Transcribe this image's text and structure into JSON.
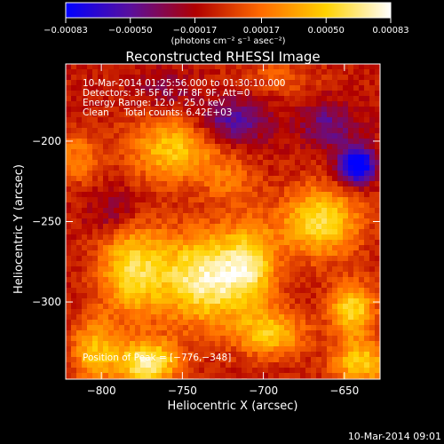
{
  "chart_data": {
    "type": "heatmap",
    "title": "Reconstructed RHESSI Image",
    "xlabel": "Heliocentric X (arcsec)",
    "ylabel": "Heliocentric Y (arcsec)",
    "xlim": [
      -822,
      -628
    ],
    "ylim": [
      -348,
      -152
    ],
    "x_ticks": [
      {
        "value": -800,
        "label": "−800"
      },
      {
        "value": -750,
        "label": "−750"
      },
      {
        "value": -700,
        "label": "−700"
      },
      {
        "value": -650,
        "label": "−650"
      }
    ],
    "y_ticks": [
      {
        "value": -200,
        "label": "−200"
      },
      {
        "value": -250,
        "label": "−250"
      },
      {
        "value": -300,
        "label": "−300"
      }
    ],
    "colorbar": {
      "min": -0.00083,
      "max": 0.00083,
      "ticks": [
        {
          "value": -0.00083,
          "label": "−0.00083"
        },
        {
          "value": -0.0005,
          "label": "−0.00050"
        },
        {
          "value": -0.00017,
          "label": "−0.00017"
        },
        {
          "value": 0.00017,
          "label": "0.00017"
        },
        {
          "value": 0.0005,
          "label": "0.00050"
        },
        {
          "value": 0.00083,
          "label": "0.00083"
        }
      ],
      "unit_label": "(photons cm⁻² s⁻¹ asec⁻²)"
    },
    "info_lines": [
      "10-Mar-2014 01:25:56.000 to 01:30:10.000",
      "Detectors: 3F 5F 6F 7F 8F 9F, Att=0",
      "Energy Range: 12.0 - 25.0 keV",
      "Clean     Total counts: 6.42E+03"
    ],
    "peak_label": "Position of Peak = [−776,−348]",
    "peak": {
      "x": -776,
      "y": -348
    },
    "grid": false,
    "colormap": [
      "#0000ff",
      "#5a0f9c",
      "#b00000",
      "#ff6a00",
      "#ffd200",
      "#ffffff"
    ],
    "blobs": [
      {
        "x": -735,
        "y": -285,
        "sx": 22,
        "sy": 20,
        "a": 0.00085
      },
      {
        "x": -772,
        "y": -338,
        "sx": 14,
        "sy": 10,
        "a": 0.0008
      },
      {
        "x": -782,
        "y": -278,
        "sx": 14,
        "sy": 22,
        "a": 0.00062
      },
      {
        "x": -755,
        "y": -205,
        "sx": 20,
        "sy": 14,
        "a": 0.00058
      },
      {
        "x": -665,
        "y": -250,
        "sx": 17,
        "sy": 15,
        "a": 0.0007
      },
      {
        "x": -708,
        "y": -275,
        "sx": 11,
        "sy": 18,
        "a": 0.00045
      },
      {
        "x": -695,
        "y": -320,
        "sx": 15,
        "sy": 10,
        "a": 0.00055
      },
      {
        "x": -645,
        "y": -305,
        "sx": 10,
        "sy": 12,
        "a": 0.00065
      },
      {
        "x": -815,
        "y": -210,
        "sx": 10,
        "sy": 12,
        "a": 0.00032
      },
      {
        "x": -640,
        "y": -338,
        "sx": 12,
        "sy": 10,
        "a": 0.0006
      },
      {
        "x": -805,
        "y": -330,
        "sx": 10,
        "sy": 14,
        "a": 0.0005
      },
      {
        "x": -690,
        "y": -160,
        "sx": 16,
        "sy": 8,
        "a": 0.0002
      },
      {
        "x": -720,
        "y": -225,
        "sx": 12,
        "sy": 10,
        "a": 0.00025
      },
      {
        "x": -720,
        "y": -188,
        "sx": 16,
        "sy": 10,
        "a": -0.00045
      },
      {
        "x": -790,
        "y": -245,
        "sx": 12,
        "sy": 12,
        "a": -0.0003
      },
      {
        "x": -642,
        "y": -215,
        "sx": 8,
        "sy": 8,
        "a": -0.0009
      },
      {
        "x": -660,
        "y": -190,
        "sx": 12,
        "sy": 10,
        "a": -0.00035
      },
      {
        "x": -760,
        "y": -168,
        "sx": 12,
        "sy": 8,
        "a": -0.0002
      }
    ]
  },
  "footer": {
    "timestamp": "10-Mar-2014 09:01"
  }
}
